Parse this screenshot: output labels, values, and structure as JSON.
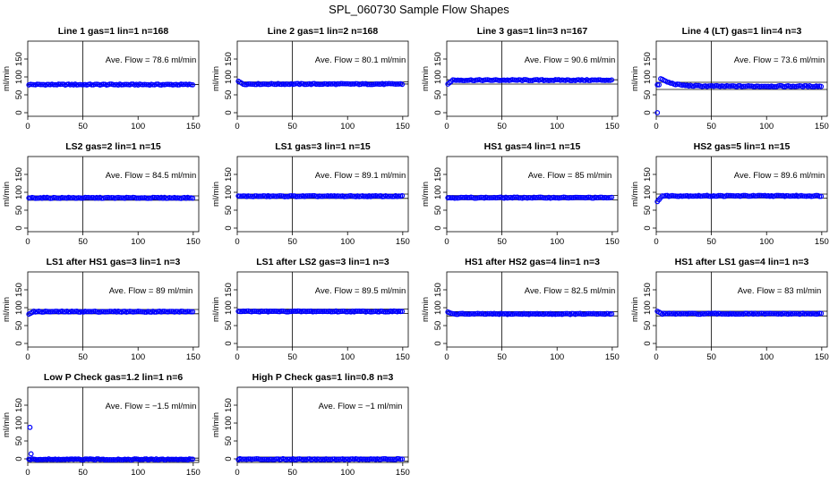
{
  "figure": {
    "title": "SPL_060730  Sample Flow Shapes",
    "colors": {
      "points": "#0000ff",
      "lines": "#000000"
    }
  },
  "chart_data": [
    {
      "type": "scatter",
      "title": "Line 1 gas=1 lin=1 n=168",
      "annotation": "Ave. Flow =  78.6  ml/min",
      "ylabel": "ml/min",
      "xlim": [
        0,
        155
      ],
      "ylim": [
        -10,
        200
      ],
      "xticks": [
        0,
        50,
        100,
        150
      ],
      "yticks": [
        0,
        50,
        100,
        150
      ],
      "hlines": [
        78.6
      ],
      "vline": 50,
      "shape": {
        "kind": "flat",
        "level": 78.6
      }
    },
    {
      "type": "scatter",
      "title": "Line 2 gas=1 lin=2 n=168",
      "annotation": "Ave. Flow =  80.1  ml/min",
      "ylabel": "ml/min",
      "xlim": [
        0,
        155
      ],
      "ylim": [
        -10,
        200
      ],
      "xticks": [
        0,
        50,
        100,
        150
      ],
      "yticks": [
        0,
        50,
        100,
        150
      ],
      "hlines": [
        86,
        80.1
      ],
      "vline": 50,
      "shape": {
        "kind": "flat",
        "level": 80.1,
        "start": 88
      }
    },
    {
      "type": "scatter",
      "title": "Line 3 gas=1 lin=3 n=167",
      "annotation": "Ave. Flow =  90.6  ml/min",
      "ylabel": "ml/min",
      "xlim": [
        0,
        155
      ],
      "ylim": [
        -10,
        200
      ],
      "xticks": [
        0,
        50,
        100,
        150
      ],
      "yticks": [
        0,
        50,
        100,
        150
      ],
      "hlines": [
        92,
        80
      ],
      "vline": 50,
      "shape": {
        "kind": "flat",
        "level": 91,
        "start": 80
      }
    },
    {
      "type": "scatter",
      "title": "Line 4 (LT) gas=1 lin=4 n=3",
      "annotation": "Ave. Flow =  73.6  ml/min",
      "ylabel": "ml/min",
      "xlim": [
        0,
        155
      ],
      "ylim": [
        -10,
        200
      ],
      "xticks": [
        0,
        50,
        100,
        150
      ],
      "yticks": [
        0,
        50,
        100,
        150
      ],
      "hlines": [
        85,
        65
      ],
      "vline": 50,
      "shape": {
        "kind": "decay",
        "level": 74,
        "peak": 98,
        "outlier": [
          1,
          0
        ]
      }
    },
    {
      "type": "scatter",
      "title": "LS2 gas=2 lin=1 n=15",
      "annotation": "Ave. Flow =  84.5  ml/min",
      "ylabel": "ml/min",
      "xlim": [
        0,
        155
      ],
      "ylim": [
        -10,
        200
      ],
      "xticks": [
        0,
        50,
        100,
        150
      ],
      "yticks": [
        0,
        50,
        100,
        150
      ],
      "hlines": [
        90,
        78
      ],
      "vline": 50,
      "shape": {
        "kind": "flat",
        "level": 84.5
      }
    },
    {
      "type": "scatter",
      "title": "LS1 gas=3 lin=1 n=15",
      "annotation": "Ave. Flow =  89.1  ml/min",
      "ylabel": "ml/min",
      "xlim": [
        0,
        155
      ],
      "ylim": [
        -10,
        200
      ],
      "xticks": [
        0,
        50,
        100,
        150
      ],
      "yticks": [
        0,
        50,
        100,
        150
      ],
      "hlines": [
        95,
        83
      ],
      "vline": 50,
      "shape": {
        "kind": "flat",
        "level": 89.1
      }
    },
    {
      "type": "scatter",
      "title": "HS1 gas=4 lin=1 n=15",
      "annotation": "Ave. Flow =  85  ml/min",
      "ylabel": "ml/min",
      "xlim": [
        0,
        155
      ],
      "ylim": [
        -10,
        200
      ],
      "xticks": [
        0,
        50,
        100,
        150
      ],
      "yticks": [
        0,
        50,
        100,
        150
      ],
      "hlines": [
        91,
        79
      ],
      "vline": 50,
      "shape": {
        "kind": "flat",
        "level": 85
      }
    },
    {
      "type": "scatter",
      "title": "HS2 gas=5 lin=1 n=15",
      "annotation": "Ave. Flow =  89.6  ml/min",
      "ylabel": "ml/min",
      "xlim": [
        0,
        155
      ],
      "ylim": [
        -10,
        200
      ],
      "xticks": [
        0,
        50,
        100,
        150
      ],
      "yticks": [
        0,
        50,
        100,
        150
      ],
      "hlines": [
        95,
        84
      ],
      "vline": 50,
      "shape": {
        "kind": "flat",
        "level": 90,
        "start": 74
      }
    },
    {
      "type": "scatter",
      "title": "LS1 after HS1 gas=3 lin=1 n=3",
      "annotation": "Ave. Flow =  89  ml/min",
      "ylabel": "ml/min",
      "xlim": [
        0,
        155
      ],
      "ylim": [
        -10,
        200
      ],
      "xticks": [
        0,
        50,
        100,
        150
      ],
      "yticks": [
        0,
        50,
        100,
        150
      ],
      "hlines": [
        95,
        83
      ],
      "vline": 50,
      "shape": {
        "kind": "flat",
        "level": 89,
        "start": 82
      }
    },
    {
      "type": "scatter",
      "title": "LS1 after LS2 gas=3 lin=1 n=3",
      "annotation": "Ave. Flow =  89.5  ml/min",
      "ylabel": "ml/min",
      "xlim": [
        0,
        155
      ],
      "ylim": [
        -10,
        200
      ],
      "xticks": [
        0,
        50,
        100,
        150
      ],
      "yticks": [
        0,
        50,
        100,
        150
      ],
      "hlines": [
        96,
        84
      ],
      "vline": 50,
      "shape": {
        "kind": "flat",
        "level": 89.5
      }
    },
    {
      "type": "scatter",
      "title": "HS1 after HS2 gas=4 lin=1 n=3",
      "annotation": "Ave. Flow =  82.5  ml/min",
      "ylabel": "ml/min",
      "xlim": [
        0,
        155
      ],
      "ylim": [
        -10,
        200
      ],
      "xticks": [
        0,
        50,
        100,
        150
      ],
      "yticks": [
        0,
        50,
        100,
        150
      ],
      "hlines": [
        89,
        77
      ],
      "vline": 50,
      "shape": {
        "kind": "flat",
        "level": 82.5,
        "start": 88
      }
    },
    {
      "type": "scatter",
      "title": "HS1 after LS1 gas=4 lin=1 n=3",
      "annotation": "Ave. Flow =  83  ml/min",
      "ylabel": "ml/min",
      "xlim": [
        0,
        155
      ],
      "ylim": [
        -10,
        200
      ],
      "xticks": [
        0,
        50,
        100,
        150
      ],
      "yticks": [
        0,
        50,
        100,
        150
      ],
      "hlines": [
        90,
        77
      ],
      "vline": 50,
      "shape": {
        "kind": "flat",
        "level": 83,
        "start": 90
      }
    },
    {
      "type": "scatter",
      "title": "Low P Check gas=1.2 lin=1 n=6",
      "annotation": "Ave. Flow =  −1.5  ml/min",
      "ylabel": "ml/min",
      "xlim": [
        0,
        155
      ],
      "ylim": [
        -10,
        200
      ],
      "xticks": [
        0,
        50,
        100,
        150
      ],
      "yticks": [
        0,
        50,
        100,
        150
      ],
      "hlines": [
        2,
        -4
      ],
      "vline": 50,
      "shape": {
        "kind": "flat",
        "level": -1.5,
        "spikes": [
          [
            2,
            88
          ],
          [
            3,
            14
          ]
        ]
      }
    },
    {
      "type": "scatter",
      "title": "High P Check gas=1 lin=0.8 n=3",
      "annotation": "Ave. Flow =  −1  ml/min",
      "ylabel": "ml/min",
      "xlim": [
        0,
        155
      ],
      "ylim": [
        -10,
        200
      ],
      "xticks": [
        0,
        50,
        100,
        150
      ],
      "yticks": [
        0,
        50,
        100,
        150
      ],
      "hlines": [
        5,
        -6
      ],
      "vline": 50,
      "shape": {
        "kind": "flat",
        "level": -1
      }
    }
  ]
}
